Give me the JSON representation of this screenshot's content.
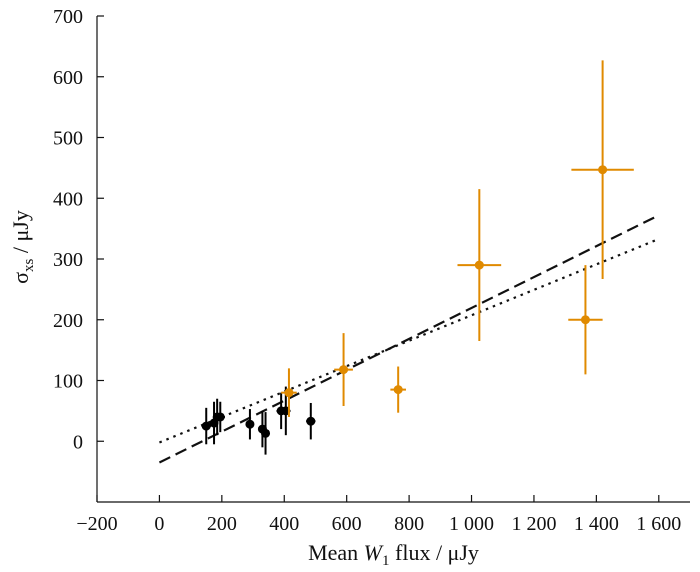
{
  "chart_data": {
    "type": "scatter",
    "title": "",
    "xlabel": {
      "prefix": "Mean ",
      "var": "W",
      "sub": "1",
      "suffix": " flux / μJy"
    },
    "ylabel": {
      "var": "σ",
      "sub": "xs",
      "suffix": " / μJy"
    },
    "xlim": [
      -200,
      1700
    ],
    "ylim": [
      -100,
      700
    ],
    "xticks": [
      -200,
      0,
      200,
      400,
      600,
      800,
      1000,
      1200,
      1400,
      1600
    ],
    "xtick_labels": [
      "−200",
      "0",
      "200",
      "400",
      "600",
      "800",
      "1 000",
      "1 200",
      "1 400",
      "1 600"
    ],
    "yticks": [
      0,
      100,
      200,
      300,
      400,
      500,
      600,
      700
    ],
    "ytick_labels": [
      "0",
      "100",
      "200",
      "300",
      "400",
      "500",
      "600",
      "700"
    ],
    "grid": false,
    "legend": "none",
    "series": [
      {
        "color": "#000000",
        "points": [
          {
            "x": 150,
            "y": 25,
            "xerr": 15,
            "yerr": 30
          },
          {
            "x": 175,
            "y": 30,
            "xerr": 10,
            "yerr": 35
          },
          {
            "x": 185,
            "y": 40,
            "xerr": 12,
            "yerr": 30
          },
          {
            "x": 195,
            "y": 40,
            "xerr": 15,
            "yerr": 25
          },
          {
            "x": 290,
            "y": 28,
            "xerr": 12,
            "yerr": 25
          },
          {
            "x": 330,
            "y": 20,
            "xerr": 10,
            "yerr": 30
          },
          {
            "x": 340,
            "y": 13,
            "xerr": 10,
            "yerr": 35
          },
          {
            "x": 390,
            "y": 50,
            "xerr": 15,
            "yerr": 30
          },
          {
            "x": 405,
            "y": 50,
            "xerr": 15,
            "yerr": 40
          },
          {
            "x": 485,
            "y": 33,
            "xerr": 15,
            "yerr": 30
          }
        ]
      },
      {
        "color": "#e08a00",
        "points": [
          {
            "x": 415,
            "y": 80,
            "xerr": 25,
            "yerr": 40
          },
          {
            "x": 590,
            "y": 118,
            "xerr": 30,
            "yerr": 60
          },
          {
            "x": 765,
            "y": 85,
            "xerr": 25,
            "yerr": 38
          },
          {
            "x": 1025,
            "y": 290,
            "xerr": 70,
            "yerr": 125
          },
          {
            "x": 1365,
            "y": 200,
            "xerr": 55,
            "yerr": 90
          },
          {
            "x": 1420,
            "y": 447,
            "xerr": 100,
            "yerr": 180
          }
        ]
      }
    ],
    "fit_lines": [
      {
        "style": "dashed",
        "x": [
          0,
          1600
        ],
        "y": [
          -35,
          372
        ]
      },
      {
        "style": "dotted",
        "x": [
          0,
          1600
        ],
        "y": [
          -2,
          333
        ]
      }
    ]
  },
  "colors": {
    "axis": "#111111",
    "fit": "#111111"
  }
}
